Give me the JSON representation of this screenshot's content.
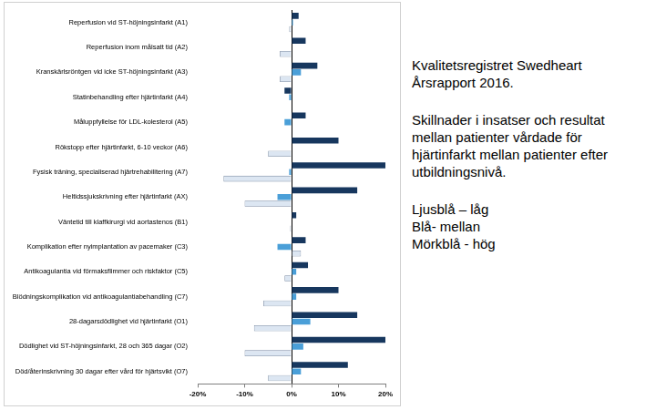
{
  "chart_data": {
    "type": "bar",
    "orientation": "horizontal",
    "title": "Kvalitetsregistret Swedheart Årsrapport 2016.",
    "subtitle": "Skillnader i insatser och resultat mellan patienter vårdade för hjärtinfarkt mellan patienter efter utbildningsnivå.",
    "categories": [
      "Reperfusion vid ST-höjningsinfarkt (A1)",
      "Reperfusion inom målsatt tid (A2)",
      "Kranskärlsröntgen vid icke ST-höjningsinfarkt (A3)",
      "Statinbehandling efter hjärtinfarkt (A4)",
      "Måluppfyllelse för LDL-kolesterol (A5)",
      "Rökstopp efter hjärtinfarkt, 6-10 veckor (A6)",
      "Fysisk träning, specialiserad hjärtrehabilitering (A7)",
      "Heltidssjukskrivning efter hjärtinfarkt (AX)",
      "Väntetid till klaffkirurgi vid aortastenos (B1)",
      "Komplikation efter nyimplantation av pacemaker (C3)",
      "Antikoagulantia vid förmaksflimmer och riskfaktor (C5)",
      "Blödningskomplikation vid antikoagulantiabehandling (C7)",
      "28-dagarsdödlighet vid hjärtinfarkt (O1)",
      "Dödlighet vid ST-höjningsinfarkt, 28 och 365 dagar (O2)",
      "Död/återinskrivning 30 dagar efter vård för hjärtsvikt (O7)"
    ],
    "series": [
      {
        "name": "Ljusblå – låg",
        "color": "#dce6f2",
        "values": [
          -0.5,
          -2.5,
          -2.5,
          0,
          0,
          -5,
          -14.5,
          -10,
          -0.3,
          2,
          -1.5,
          -6,
          -8,
          -10,
          -5
        ]
      },
      {
        "name": "Blå- mellan",
        "color": "#4a9fd8",
        "values": [
          0.3,
          0,
          2,
          -0.5,
          -1.5,
          0,
          -0.5,
          -3,
          0,
          -3,
          1,
          1,
          4,
          2.5,
          2
        ]
      },
      {
        "name": "Mörkblå - hög",
        "color": "#17375e",
        "values": [
          1.5,
          3,
          5.5,
          -1.5,
          3,
          10,
          20,
          14,
          1,
          3,
          3.5,
          10,
          14,
          20,
          12
        ]
      }
    ],
    "xlim": [
      -20,
      20
    ],
    "xticks": [
      {
        "value": -20,
        "label": "-20%"
      },
      {
        "value": -10,
        "label": "-10%"
      },
      {
        "value": 0,
        "label": "0%"
      },
      {
        "value": 10,
        "label": "10%"
      },
      {
        "value": 20,
        "label": "20%"
      }
    ],
    "grid": false,
    "tick_labels": true
  }
}
